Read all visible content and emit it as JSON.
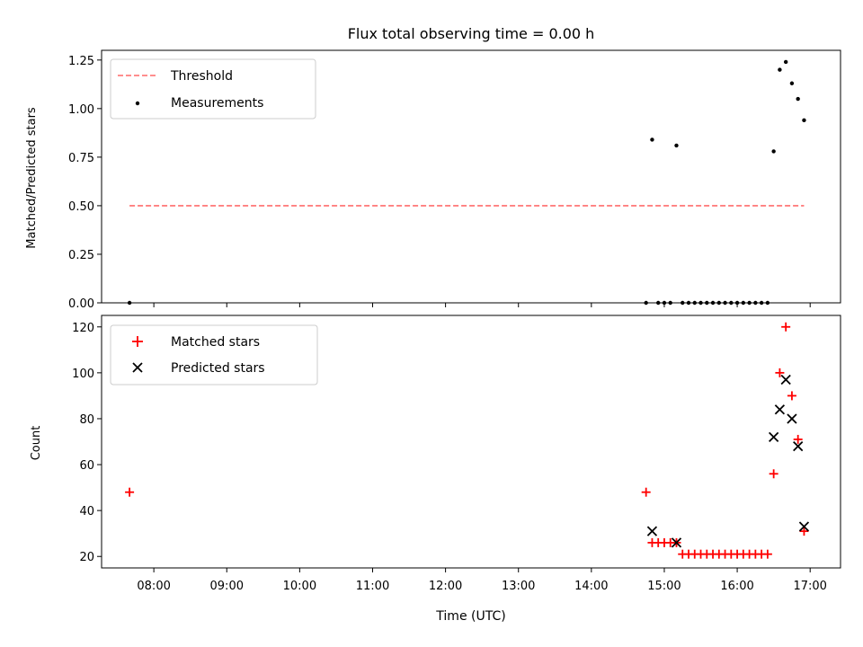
{
  "figure": {
    "title": "Flux total observing time = 0.00 h",
    "xlabel": "Time (UTC)"
  },
  "colors": {
    "threshold": "#ff7f7f",
    "measurements": "#000000",
    "matched": "#ff0000",
    "predicted": "#000000"
  },
  "chart_data": [
    {
      "type": "scatter",
      "panel": "top",
      "ylabel": "Matched/Predicted stars",
      "xlim": [
        "07:17",
        "17:25"
      ],
      "ylim": [
        0,
        1.3
      ],
      "yticks": [
        0.0,
        0.25,
        0.5,
        0.75,
        1.0,
        1.25
      ],
      "ytick_labels": [
        "0.00",
        "0.25",
        "0.50",
        "0.75",
        "1.00",
        "1.25"
      ],
      "legend": {
        "placement": "upper-left",
        "entries": [
          "Threshold",
          "Measurements"
        ]
      },
      "series": [
        {
          "name": "Threshold",
          "kind": "line",
          "style": "dashed",
          "x": [
            "07:40",
            "16:55"
          ],
          "y": [
            0.5,
            0.5
          ]
        },
        {
          "name": "Measurements",
          "kind": "scatter",
          "marker": "dot",
          "x": [
            "07:40",
            "14:45",
            "14:50",
            "14:55",
            "15:00",
            "15:05",
            "15:10",
            "15:15",
            "15:20",
            "15:25",
            "15:30",
            "15:35",
            "15:40",
            "15:45",
            "15:50",
            "15:55",
            "16:00",
            "16:05",
            "16:10",
            "16:15",
            "16:20",
            "16:25",
            "16:30",
            "16:35",
            "16:40",
            "16:45",
            "16:50",
            "16:55"
          ],
          "y": [
            0,
            0,
            0.84,
            0,
            0,
            0,
            0.81,
            0,
            0,
            0,
            0,
            0,
            0,
            0,
            0,
            0,
            0,
            0,
            0,
            0,
            0,
            0,
            0.78,
            1.2,
            1.24,
            1.13,
            1.05,
            0.94
          ]
        }
      ]
    },
    {
      "type": "scatter",
      "panel": "bottom",
      "ylabel": "Count",
      "xlim": [
        "07:17",
        "17:25"
      ],
      "ylim": [
        15,
        125
      ],
      "yticks": [
        20,
        40,
        60,
        80,
        100,
        120
      ],
      "ytick_labels": [
        "20",
        "40",
        "60",
        "80",
        "100",
        "120"
      ],
      "xticks": [
        "08:00",
        "09:00",
        "10:00",
        "11:00",
        "12:00",
        "13:00",
        "14:00",
        "15:00",
        "16:00",
        "17:00"
      ],
      "xtick_labels": [
        "08:00",
        "09:00",
        "10:00",
        "11:00",
        "12:00",
        "13:00",
        "14:00",
        "15:00",
        "16:00",
        "17:00"
      ],
      "legend": {
        "placement": "upper-left",
        "entries": [
          "Matched stars",
          "Predicted stars"
        ]
      },
      "series": [
        {
          "name": "Matched stars",
          "marker": "plus",
          "x": [
            "07:40",
            "14:45",
            "14:50",
            "14:55",
            "15:00",
            "15:05",
            "15:10",
            "15:15",
            "15:20",
            "15:25",
            "15:30",
            "15:35",
            "15:40",
            "15:45",
            "15:50",
            "15:55",
            "16:00",
            "16:05",
            "16:10",
            "16:15",
            "16:20",
            "16:25",
            "16:30",
            "16:35",
            "16:40",
            "16:45",
            "16:50",
            "16:55"
          ],
          "y": [
            48,
            48,
            26,
            26,
            26,
            26,
            26,
            21,
            21,
            21,
            21,
            21,
            21,
            21,
            21,
            21,
            21,
            21,
            21,
            21,
            21,
            21,
            56,
            100,
            120,
            90,
            71,
            31
          ]
        },
        {
          "name": "Predicted stars",
          "marker": "x",
          "x": [
            "14:50",
            "15:10",
            "16:30",
            "16:35",
            "16:40",
            "16:45",
            "16:50",
            "16:55"
          ],
          "y": [
            31,
            26,
            72,
            84,
            97,
            80,
            68,
            33
          ]
        }
      ]
    }
  ]
}
